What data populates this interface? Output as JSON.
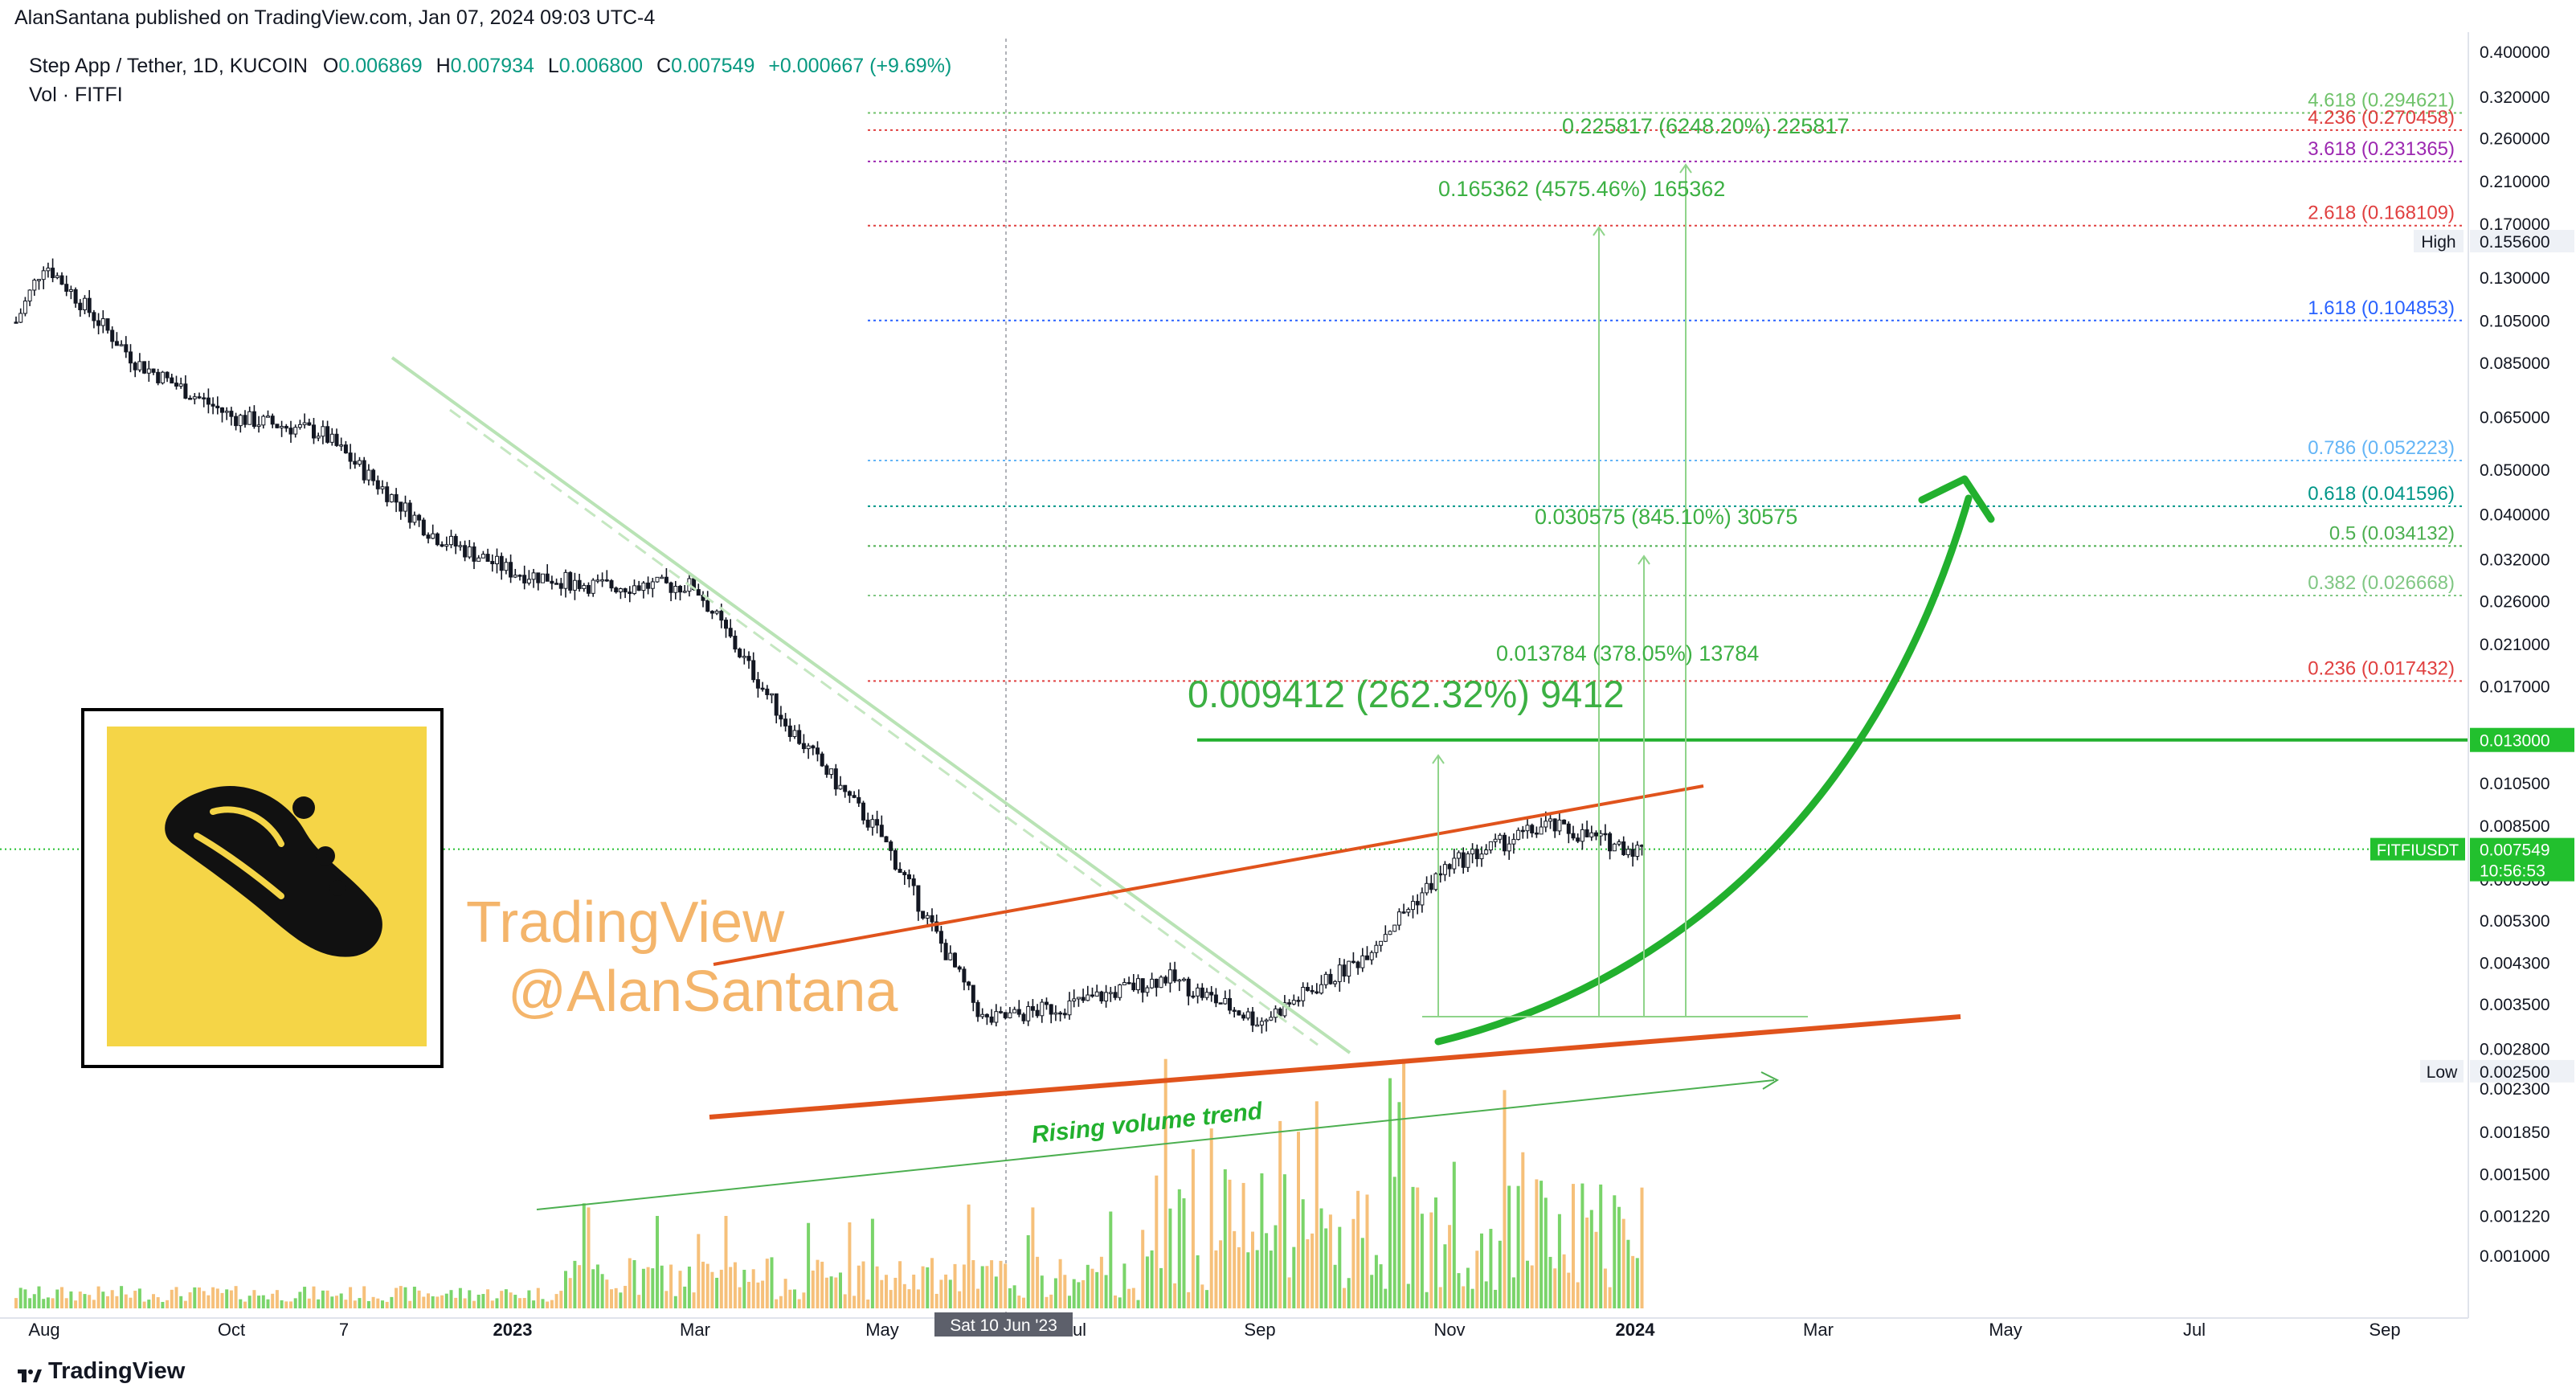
{
  "header": {
    "published": "AlanSantana published on TradingView.com, Jan 07, 2024 09:03 UTC-4"
  },
  "legend": {
    "symbol": "Step App / Tether, 1D, KUCOIN",
    "o_label": "O",
    "o": "0.006869",
    "h_label": "H",
    "h": "0.007934",
    "l_label": "L",
    "l": "0.006800",
    "c_label": "C",
    "c": "0.007549",
    "change": "+0.000667 (+9.69%)",
    "vol": "Vol · FITFI"
  },
  "footer": {
    "brand": "TradingView"
  },
  "colors": {
    "up": "#26a69a",
    "down": "#ef5350",
    "candle": "#131722",
    "channel": "#e0531c",
    "arrow": "#22b02e",
    "target": "#3cb043",
    "vol_up": "#7ad46a",
    "vol_down": "#f6c07a",
    "watermark": "#f4b56b",
    "logo_bg": "#f5d547"
  },
  "watermark": {
    "line1": "TradingView",
    "line2": "@AlanSantana"
  },
  "annotations": {
    "rising_volume": "Rising volume trend",
    "measure1": "0.009412 (262.32%) 9412",
    "measure2": "0.013784 (378.05%) 13784",
    "measure3": "0.030575 (845.10%) 30575",
    "measure4": "0.165362 (4575.46%) 165362",
    "measure5": "0.225817 (6248.20%) 225817"
  },
  "chart_data": {
    "type": "candlestick",
    "title": "Step App / Tether, 1D, KUCOIN",
    "y_scale": "log",
    "y_ticks": [
      "0.400000",
      "0.320000",
      "0.260000",
      "0.210000",
      "0.170000",
      "0.130000",
      "0.105000",
      "0.085000",
      "0.065000",
      "0.050000",
      "0.040000",
      "0.032000",
      "0.026000",
      "0.021000",
      "0.017000",
      "0.010500",
      "0.008500",
      "0.006500",
      "0.005300",
      "0.004300",
      "0.003500",
      "0.002800",
      "0.002300",
      "0.001850",
      "0.001500",
      "0.001220",
      "0.001000"
    ],
    "x_ticks": [
      "Aug",
      "Oct",
      "7",
      "2023",
      "Mar",
      "May",
      "Jul",
      "Sep",
      "Nov",
      "2024",
      "Mar",
      "May",
      "Jul",
      "Sep"
    ],
    "crosshair_date": "Sat 10 Jun '23",
    "fib_levels": [
      {
        "label": "4.618 (0.294621)",
        "value": 0.294621,
        "color": "#6fc26a"
      },
      {
        "label": "4.236 (0.270458)",
        "value": 0.270458,
        "color": "#e04040"
      },
      {
        "label": "3.618 (0.231365)",
        "value": 0.231365,
        "color": "#9c27b0"
      },
      {
        "label": "2.618 (0.168109)",
        "value": 0.168109,
        "color": "#e04040"
      },
      {
        "label": "1.618 (0.104853)",
        "value": 0.104853,
        "color": "#2962ff"
      },
      {
        "label": "0.786 (0.052223)",
        "value": 0.052223,
        "color": "#64b5f6"
      },
      {
        "label": "0.618 (0.041596)",
        "value": 0.041596,
        "color": "#009688"
      },
      {
        "label": "0.5 (0.034132)",
        "value": 0.034132,
        "color": "#4caf50"
      },
      {
        "label": "0.382 (0.026668)",
        "value": 0.026668,
        "color": "#81c784"
      },
      {
        "label": "0.236 (0.017432)",
        "value": 0.017432,
        "color": "#e04040"
      }
    ],
    "horizontal_line": {
      "value": 0.013,
      "label": "0.013000"
    },
    "high": {
      "label": "High",
      "value": "0.155600"
    },
    "low": {
      "label": "Low",
      "value": "0.002500"
    },
    "current": {
      "label": "FITFIUSDT",
      "value": "0.007549",
      "countdown": "10:56:53"
    },
    "series": [
      {
        "name": "price",
        "approx_path": [
          {
            "x": "Jul 2022",
            "y": 0.104
          },
          {
            "x": "Aug 2022",
            "y": 0.14
          },
          {
            "x": "Sep 2022",
            "y": 0.085
          },
          {
            "x": "Oct 2022",
            "y": 0.065
          },
          {
            "x": "Nov 2022",
            "y": 0.06
          },
          {
            "x": "Dec 2022",
            "y": 0.036
          },
          {
            "x": "Jan 2023",
            "y": 0.03
          },
          {
            "x": "Feb 2023",
            "y": 0.028
          },
          {
            "x": "Mar 2023",
            "y": 0.028
          },
          {
            "x": "Apr 2023",
            "y": 0.014
          },
          {
            "x": "May 2023",
            "y": 0.008
          },
          {
            "x": "Jun 2023",
            "y": 0.0032
          },
          {
            "x": "Jul 2023",
            "y": 0.0035
          },
          {
            "x": "Aug 2023",
            "y": 0.004
          },
          {
            "x": "Sep 2023",
            "y": 0.0032
          },
          {
            "x": "Oct 2023",
            "y": 0.0043
          },
          {
            "x": "Nov 2023",
            "y": 0.007
          },
          {
            "x": "Dec 2023",
            "y": 0.0085
          },
          {
            "x": "Jan 2024",
            "y": 0.007549
          }
        ]
      }
    ]
  }
}
